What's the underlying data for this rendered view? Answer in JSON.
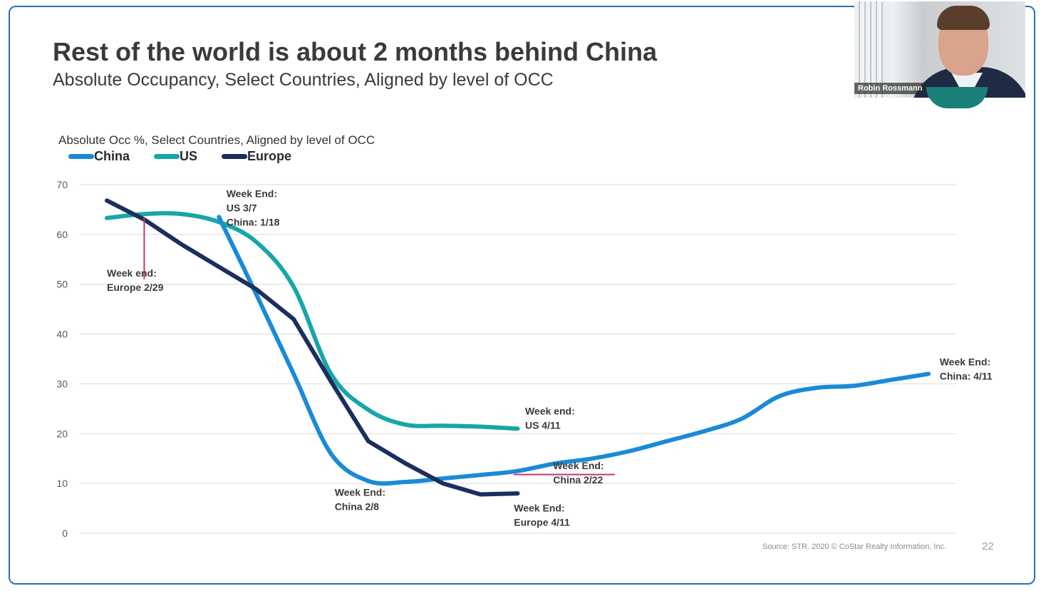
{
  "slide": {
    "title": "Rest of the world is about 2 months behind China",
    "subtitle": "Absolute Occupancy, Select Countries, Aligned by level of OCC",
    "source": "Source: STR. 2020 © CoStar Realty Information, Inc.",
    "page_number": "22"
  },
  "video": {
    "name": "Robin Rossmann"
  },
  "chart_data": {
    "type": "line",
    "title": "Absolute Occ %, Select Countries, Aligned by level of OCC",
    "xlabel": "",
    "ylabel": "",
    "ylim": [
      0,
      70
    ],
    "yticks": [
      0,
      10,
      20,
      30,
      40,
      50,
      60,
      70
    ],
    "grid": true,
    "legend": "top-left",
    "x": [
      0,
      1,
      2,
      3,
      4,
      5,
      6,
      7,
      8,
      9,
      10,
      11,
      12,
      13,
      14,
      15,
      16,
      17,
      18,
      19,
      20,
      21,
      22
    ],
    "series": [
      {
        "name": "China",
        "color": "#1a8ad8",
        "x": [
          3,
          4,
          5,
          6,
          7,
          8,
          9,
          10,
          11,
          12,
          13,
          14,
          15,
          16,
          17,
          18,
          19,
          20,
          21,
          22
        ],
        "values": [
          63.5,
          48,
          32,
          16,
          10.5,
          10.3,
          11,
          11.7,
          12.5,
          14,
          15,
          16.5,
          18.5,
          20.5,
          23,
          27.5,
          29.2,
          29.6,
          30.8,
          32
        ]
      },
      {
        "name": "US",
        "color": "#17a6a8",
        "x": [
          0,
          1,
          2,
          3,
          4,
          5,
          6,
          7,
          8,
          9,
          10,
          11
        ],
        "values": [
          63.3,
          64.1,
          64.1,
          62.5,
          58.5,
          49.5,
          32,
          24.8,
          21.8,
          21.6,
          21.4,
          21
        ]
      },
      {
        "name": "Europe",
        "color": "#1c2e5e",
        "x": [
          0,
          1,
          2,
          3,
          4,
          5,
          6,
          7,
          8,
          9,
          10,
          11
        ],
        "values": [
          66.8,
          63,
          58,
          53.5,
          49,
          43,
          30.5,
          18.5,
          14,
          10,
          7.8,
          8
        ]
      }
    ],
    "annotations": [
      {
        "line1": "Week End:",
        "line2": "US 3/7",
        "line3": "China: 1/18",
        "x": 3.2,
        "y": 67.5
      },
      {
        "line1": "Week end:",
        "line2": "Europe  2/29",
        "x": 0,
        "y": 51.5
      },
      {
        "line1": "Week end:",
        "line2": "US 4/11",
        "x": 11.2,
        "y": 23.8
      },
      {
        "line1": "Week End:",
        "line2": "China 2/8",
        "x": 6.1,
        "y": 7.5
      },
      {
        "line1": "Week End:",
        "line2": "China 2/22",
        "x": 11.95,
        "y": 12.9
      },
      {
        "line1": "Week End:",
        "line2": "Europe 4/11",
        "x": 10.9,
        "y": 4.4
      },
      {
        "line1": "Week End:",
        "line2": "China: 4/11",
        "x": 22.3,
        "y": 33.7
      }
    ],
    "markers": [
      {
        "name": "europe-2-29-marker",
        "color": "#c4337a",
        "type": "vertical",
        "x": 1.0,
        "from": 51,
        "to": 63.5
      },
      {
        "name": "china-2-22-marker",
        "color": "#c4337a",
        "type": "horizontal",
        "y": 11.8,
        "from": 10.9,
        "to": 13.6
      }
    ]
  }
}
